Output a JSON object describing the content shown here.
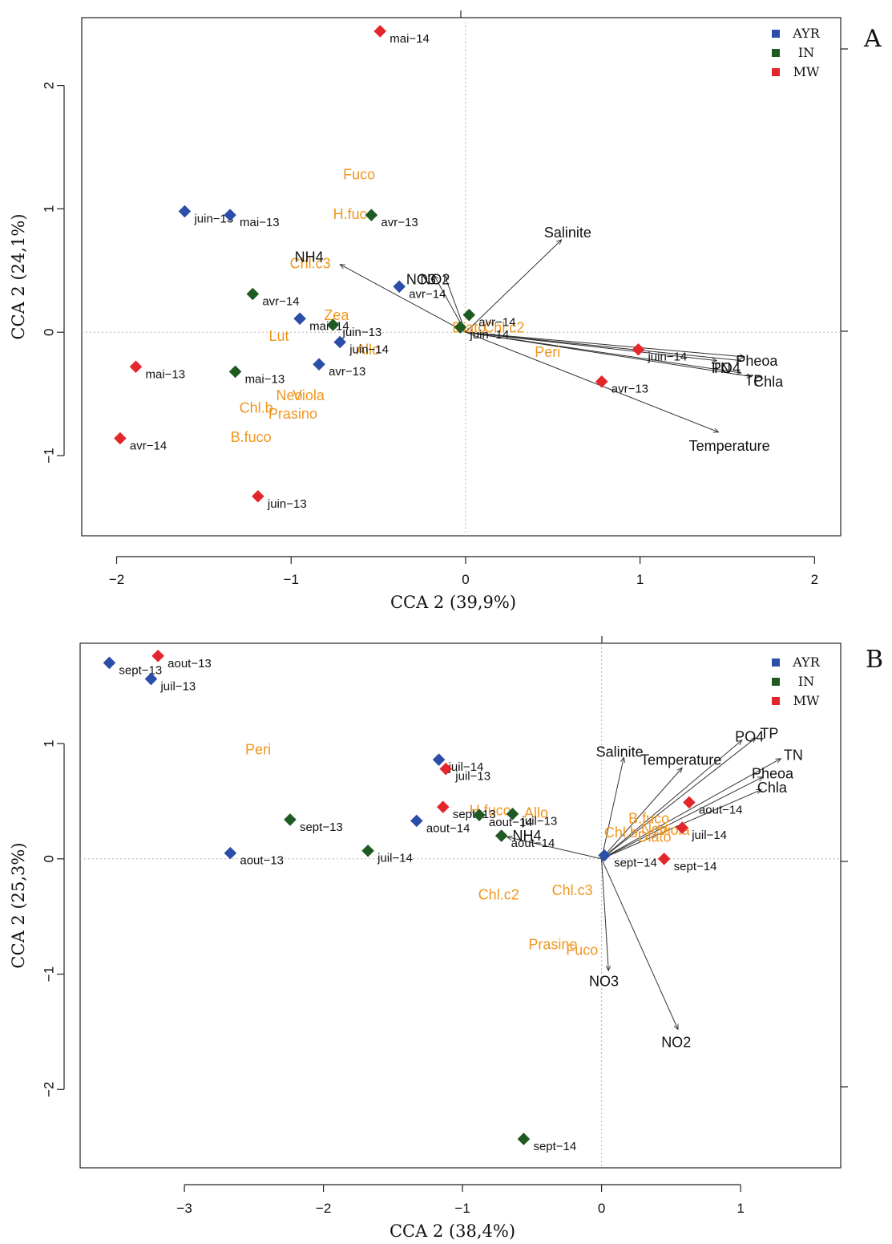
{
  "chart_data": [
    {
      "type": "scatter",
      "panel": "A",
      "xlabel": "CCA 2 (39,9%)",
      "ylabel": "CCA 2 (24,1%)",
      "xlim": [
        -2.2,
        2.15
      ],
      "ylim": [
        -1.65,
        2.55
      ],
      "xticks": [
        -2,
        -1,
        0,
        1,
        2
      ],
      "yticks": [
        -1,
        0,
        1,
        2
      ],
      "legend": {
        "position": "top-right",
        "entries": [
          {
            "name": "AYR",
            "color": "#2b4ea8"
          },
          {
            "name": "IN",
            "color": "#1f5a22"
          },
          {
            "name": "MW",
            "color": "#e3262b"
          }
        ]
      },
      "sites": [
        {
          "label": "mai−14",
          "x": -0.49,
          "y": 2.44,
          "group": "MW"
        },
        {
          "label": "juin−13",
          "x": -1.61,
          "y": 0.98,
          "group": "AYR"
        },
        {
          "label": "mai−13",
          "x": -1.35,
          "y": 0.95,
          "group": "AYR"
        },
        {
          "label": "avr−13",
          "x": -0.54,
          "y": 0.95,
          "group": "IN"
        },
        {
          "label": "avr−14",
          "x": -0.38,
          "y": 0.37,
          "group": "AYR"
        },
        {
          "label": "avr−14",
          "x": -1.22,
          "y": 0.31,
          "group": "IN"
        },
        {
          "label": "mai−14",
          "x": -0.95,
          "y": 0.11,
          "group": "AYR"
        },
        {
          "label": "juin−13",
          "x": -0.76,
          "y": 0.06,
          "group": "IN"
        },
        {
          "label": "juin−14",
          "x": -0.72,
          "y": -0.08,
          "group": "AYR"
        },
        {
          "label": "avr−13",
          "x": -0.84,
          "y": -0.26,
          "group": "AYR"
        },
        {
          "label": "mai−13",
          "x": -1.32,
          "y": -0.32,
          "group": "IN"
        },
        {
          "label": "mai−13",
          "x": -1.89,
          "y": -0.28,
          "group": "MW"
        },
        {
          "label": "avr−14",
          "x": -1.98,
          "y": -0.86,
          "group": "MW"
        },
        {
          "label": "juin−13",
          "x": -1.19,
          "y": -1.33,
          "group": "MW"
        },
        {
          "label": "avr−14",
          "x": 0.02,
          "y": 0.14,
          "group": "IN"
        },
        {
          "label": "juin−14",
          "x": -0.03,
          "y": 0.04,
          "group": "IN"
        },
        {
          "label": "juin−14",
          "x": 0.99,
          "y": -0.14,
          "group": "MW"
        },
        {
          "label": "avr−13",
          "x": 0.78,
          "y": -0.4,
          "group": "MW"
        }
      ],
      "species": [
        {
          "label": "Fuco",
          "x": -0.61,
          "y": 1.27
        },
        {
          "label": "H.fuco",
          "x": -0.64,
          "y": 0.95
        },
        {
          "label": "Chl.c3",
          "x": -0.89,
          "y": 0.55
        },
        {
          "label": "Zea",
          "x": -0.74,
          "y": 0.13
        },
        {
          "label": "Lut",
          "x": -1.07,
          "y": -0.04
        },
        {
          "label": "Allo",
          "x": -0.56,
          "y": -0.15
        },
        {
          "label": "Neo",
          "x": -1.01,
          "y": -0.52
        },
        {
          "label": "Viola",
          "x": -0.9,
          "y": -0.52
        },
        {
          "label": "Chl.b",
          "x": -1.2,
          "y": -0.62
        },
        {
          "label": "Prasino",
          "x": -0.99,
          "y": -0.67
        },
        {
          "label": "B.fuco",
          "x": -1.23,
          "y": -0.86
        },
        {
          "label": "Diato",
          "x": 0.02,
          "y": 0.03
        },
        {
          "label": "Chl.c2",
          "x": 0.22,
          "y": 0.03
        },
        {
          "label": "Peri",
          "x": 0.47,
          "y": -0.17
        }
      ],
      "env": [
        {
          "label": "Salinite",
          "x": 0.55,
          "y": 0.75,
          "lx": 0.45,
          "ly": 0.8
        },
        {
          "label": "NH4",
          "x": -0.72,
          "y": 0.55,
          "lx": -0.98,
          "ly": 0.6
        },
        {
          "label": "NO3",
          "x": -0.18,
          "y": 0.46,
          "lx": -0.34,
          "ly": 0.42
        },
        {
          "label": "NO2",
          "x": -0.12,
          "y": 0.46,
          "lx": -0.26,
          "ly": 0.42
        },
        {
          "label": "Pheoa",
          "x": 1.6,
          "y": -0.2,
          "lx": 1.55,
          "ly": -0.24
        },
        {
          "label": "PO4",
          "x": 1.58,
          "y": -0.23,
          "lx": 1.41,
          "ly": -0.3
        },
        {
          "label": "TN",
          "x": 1.44,
          "y": -0.23,
          "lx": 1.41,
          "ly": -0.3
        },
        {
          "label": "TP",
          "x": 1.58,
          "y": -0.33,
          "lx": 1.6,
          "ly": -0.4
        },
        {
          "label": "Chla",
          "x": 1.64,
          "y": -0.36,
          "lx": 1.65,
          "ly": -0.41
        },
        {
          "label": "Temperature",
          "x": 1.45,
          "y": -0.81,
          "lx": 1.28,
          "ly": -0.93
        }
      ]
    },
    {
      "type": "scatter",
      "panel": "B",
      "xlabel": "CCA 2 (38,4%)",
      "ylabel": "CCA 2 (25,3%)",
      "xlim": [
        -3.75,
        1.72
      ],
      "ylim": [
        -2.68,
        1.87
      ],
      "xticks": [
        -3,
        -2,
        -1,
        0,
        1
      ],
      "yticks": [
        -2,
        -1,
        0,
        1
      ],
      "legend": {
        "position": "top-right",
        "entries": [
          {
            "name": "AYR",
            "color": "#2b4ea8"
          },
          {
            "name": "IN",
            "color": "#1f5a22"
          },
          {
            "name": "MW",
            "color": "#e3262b"
          }
        ]
      },
      "sites": [
        {
          "label": "sept−13",
          "x": -3.54,
          "y": 1.7,
          "group": "AYR"
        },
        {
          "label": "aout−13",
          "x": -3.19,
          "y": 1.76,
          "group": "MW"
        },
        {
          "label": "juil−13",
          "x": -3.24,
          "y": 1.56,
          "group": "AYR"
        },
        {
          "label": "juil−14",
          "x": -1.17,
          "y": 0.86,
          "group": "AYR"
        },
        {
          "label": "juil−13",
          "x": -1.12,
          "y": 0.78,
          "group": "MW"
        },
        {
          "label": "sept−13",
          "x": -1.14,
          "y": 0.45,
          "group": "MW"
        },
        {
          "label": "sept−13",
          "x": -2.24,
          "y": 0.34,
          "group": "IN"
        },
        {
          "label": "aout−14",
          "x": -1.33,
          "y": 0.33,
          "group": "AYR"
        },
        {
          "label": "aout−14",
          "x": -0.88,
          "y": 0.38,
          "group": "IN"
        },
        {
          "label": "juil−13",
          "x": -0.64,
          "y": 0.39,
          "group": "IN"
        },
        {
          "label": "aout−14",
          "x": -0.72,
          "y": 0.2,
          "group": "IN"
        },
        {
          "label": "aout−13",
          "x": -2.67,
          "y": 0.05,
          "group": "AYR"
        },
        {
          "label": "juil−14",
          "x": -1.68,
          "y": 0.07,
          "group": "IN"
        },
        {
          "label": "sept−14",
          "x": 0.02,
          "y": 0.03,
          "group": "AYR"
        },
        {
          "label": "sept−14",
          "x": 0.45,
          "y": 0.0,
          "group": "MW"
        },
        {
          "label": "aout−14",
          "x": 0.63,
          "y": 0.49,
          "group": "MW"
        },
        {
          "label": "juil−14",
          "x": 0.58,
          "y": 0.27,
          "group": "MW"
        },
        {
          "label": "sept−14",
          "x": -0.56,
          "y": -2.43,
          "group": "IN"
        }
      ],
      "species": [
        {
          "label": "Peri",
          "x": -2.47,
          "y": 0.94
        },
        {
          "label": "H.fuco",
          "x": -0.8,
          "y": 0.41
        },
        {
          "label": "Allo",
          "x": -0.47,
          "y": 0.39
        },
        {
          "label": "Chl.c2",
          "x": -0.74,
          "y": -0.32
        },
        {
          "label": "Chl.c3",
          "x": -0.21,
          "y": -0.28
        },
        {
          "label": "Prasino",
          "x": -0.35,
          "y": -0.75
        },
        {
          "label": "Fuco",
          "x": -0.14,
          "y": -0.8
        },
        {
          "label": "B.fuco",
          "x": 0.34,
          "y": 0.34
        },
        {
          "label": "Chl.b",
          "x": 0.14,
          "y": 0.22
        },
        {
          "label": "Neo",
          "x": 0.38,
          "y": 0.25
        },
        {
          "label": "Viola",
          "x": 0.52,
          "y": 0.24
        },
        {
          "label": "Diato",
          "x": 0.38,
          "y": 0.18
        }
      ],
      "env": [
        {
          "label": "Salinite",
          "x": 0.16,
          "y": 0.88,
          "lx": -0.04,
          "ly": 0.92
        },
        {
          "label": "Temperature",
          "x": 0.58,
          "y": 0.79,
          "lx": 0.28,
          "ly": 0.85
        },
        {
          "label": "PO4",
          "x": 1.01,
          "y": 1.03,
          "lx": 0.96,
          "ly": 1.05
        },
        {
          "label": "TP",
          "x": 1.11,
          "y": 1.05,
          "lx": 1.14,
          "ly": 1.08
        },
        {
          "label": "TN",
          "x": 1.29,
          "y": 0.87,
          "lx": 1.31,
          "ly": 0.89
        },
        {
          "label": "Pheoa",
          "x": 1.16,
          "y": 0.71,
          "lx": 1.08,
          "ly": 0.73
        },
        {
          "label": "Chla",
          "x": 1.15,
          "y": 0.6,
          "lx": 1.12,
          "ly": 0.61
        },
        {
          "label": "NH4",
          "x": -0.68,
          "y": 0.19,
          "lx": -0.64,
          "ly": 0.19
        },
        {
          "label": "NO3",
          "x": 0.05,
          "y": -0.97,
          "lx": -0.09,
          "ly": -1.07
        },
        {
          "label": "NO2",
          "x": 0.55,
          "y": -1.48,
          "lx": 0.43,
          "ly": -1.6
        }
      ]
    }
  ]
}
